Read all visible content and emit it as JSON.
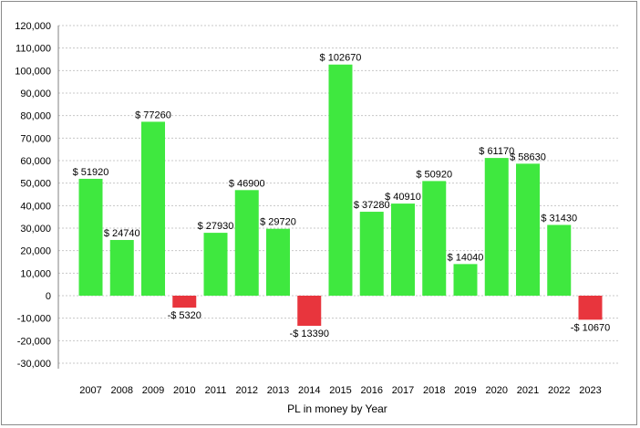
{
  "chart_data": {
    "type": "bar",
    "title": "",
    "xlabel": "PL in money by Year",
    "ylabel": "",
    "ylim": [
      -30000,
      120000
    ],
    "ytick_step": 10000,
    "yticks": [
      "120,000",
      "110,000",
      "100,000",
      "90,000",
      "80,000",
      "70,000",
      "60,000",
      "50,000",
      "40,000",
      "30,000",
      "20,000",
      "10,000",
      "0",
      "-10,000",
      "-20,000",
      "-30,000"
    ],
    "categories": [
      "2007",
      "2008",
      "2009",
      "2010",
      "2011",
      "2012",
      "2013",
      "2014",
      "2015",
      "2016",
      "2017",
      "2018",
      "2019",
      "2020",
      "2021",
      "2022",
      "2023"
    ],
    "values": [
      51920,
      24740,
      77260,
      -5320,
      27930,
      46900,
      29720,
      -13390,
      102670,
      37280,
      40910,
      50920,
      14040,
      61170,
      58630,
      31430,
      -10670
    ],
    "data_labels": [
      "$ 51920",
      "$ 24740",
      "$ 77260",
      "-$ 5320",
      "$ 27930",
      "$ 46900",
      "$ 29720",
      "-$ 13390",
      "$ 102670",
      "$ 37280",
      "$ 40910",
      "$ 50920",
      "$ 14040",
      "$ 61170",
      "$ 58630",
      "$ 31430",
      "-$ 10670"
    ],
    "grid": true,
    "colors": {
      "positive": "#3fe83f",
      "negative": "#e8353d",
      "grid": "#c8c8c8",
      "axis": "#808080"
    }
  }
}
